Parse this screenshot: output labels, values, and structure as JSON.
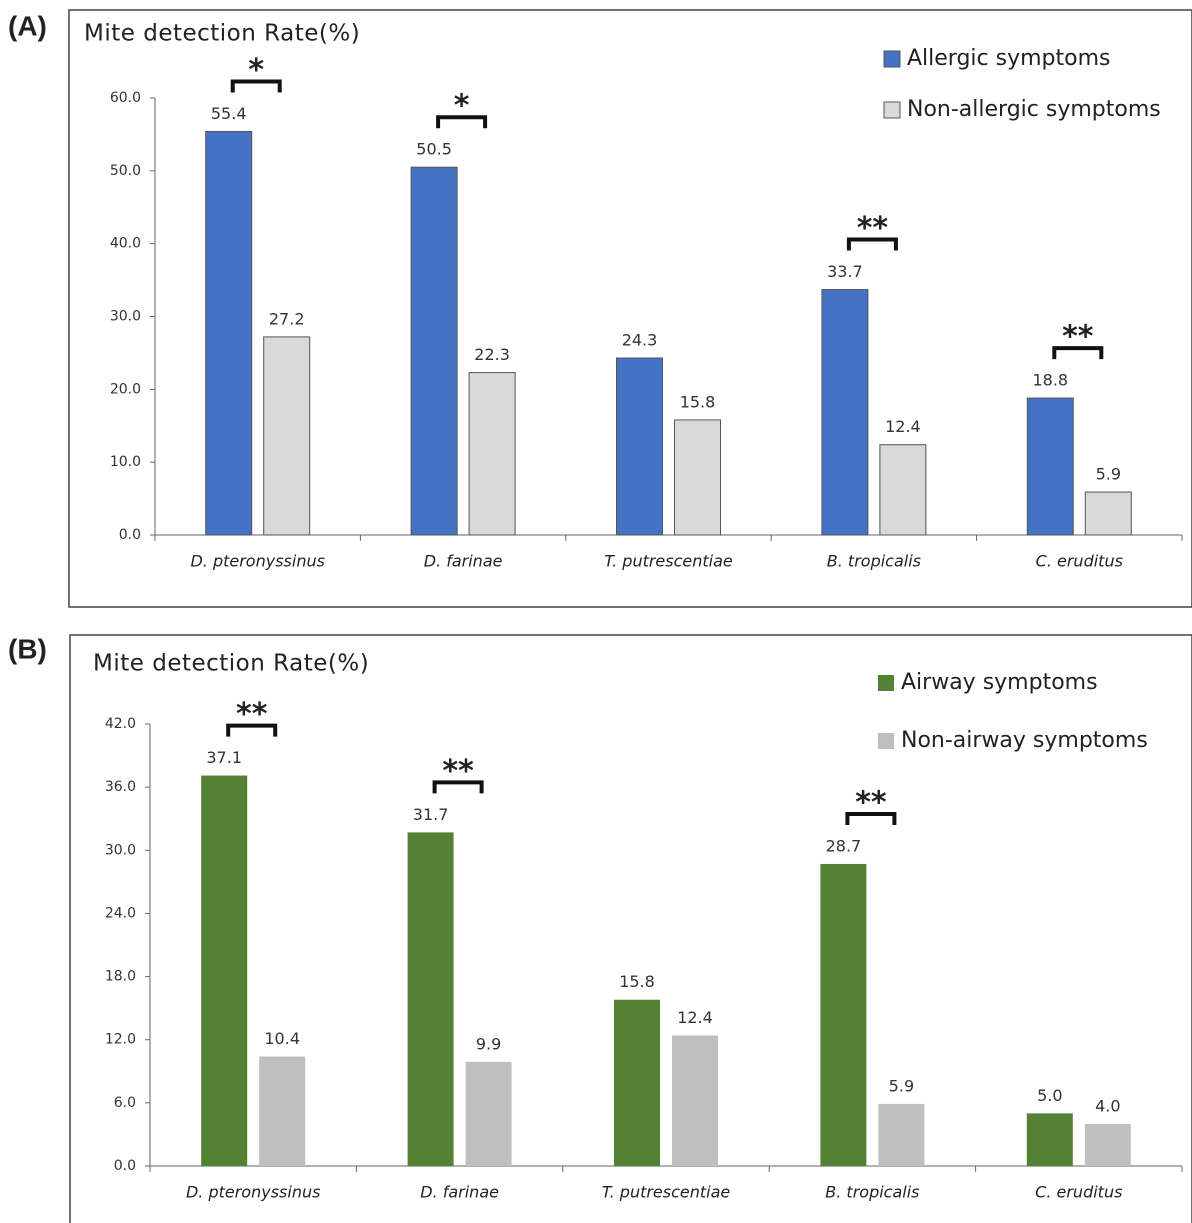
{
  "chart_data": [
    {
      "type": "bar",
      "panel_label": "(A)",
      "title": "Mite  detection Rate(%)",
      "categories": [
        "D. pteronyssinus",
        "D.  farinae",
        "T. putrescentiae",
        "B. tropicalis",
        "C. eruditus"
      ],
      "series": [
        {
          "name": "Allergic symptoms",
          "color": "#4472c4",
          "values": [
            55.4,
            50.5,
            24.3,
            33.7,
            18.8
          ]
        },
        {
          "name": "Non-allergic symptoms",
          "color": "#d9d9d9",
          "values": [
            27.2,
            22.3,
            15.8,
            12.4,
            5.9
          ]
        }
      ],
      "significance": [
        "*",
        "*",
        null,
        "**",
        "**"
      ],
      "ylim": [
        0,
        60
      ],
      "yticks": [
        {
          "value": 0,
          "label": "0.0"
        },
        {
          "value": 10,
          "label": "10.0"
        },
        {
          "value": 20,
          "label": "20.0"
        },
        {
          "value": 30,
          "label": "30.0"
        },
        {
          "value": 40,
          "label": "40.0"
        },
        {
          "value": 50,
          "label": "50.0"
        },
        {
          "value": 60,
          "label": "60.0"
        }
      ],
      "grid": false,
      "legend": "upper right"
    },
    {
      "type": "bar",
      "panel_label": "(B)",
      "title": "Mite  detection Rate(%)",
      "categories": [
        "D. pteronyssinus",
        "D.  farinae",
        "T. putrescentiae",
        "B. tropicalis",
        "C. eruditus"
      ],
      "series": [
        {
          "name": "Airway symptoms",
          "color": "#548235",
          "values": [
            37.1,
            31.7,
            15.8,
            28.7,
            5
          ],
          "value_labels": [
            "37.1",
            "31.7",
            "15.8",
            "28.7",
            "5.0"
          ]
        },
        {
          "name": "Non-airway symptoms",
          "color": "#bfbfbf",
          "values": [
            10.4,
            9.9,
            12.4,
            5.9,
            4
          ],
          "value_labels": [
            "10.4",
            "9.9",
            "12.4",
            "5.9",
            "4.0"
          ]
        }
      ],
      "significance": [
        "**",
        "**",
        null,
        "**",
        null
      ],
      "ylim": [
        0,
        42
      ],
      "yticks": [
        {
          "value": 0,
          "label": "0.0"
        },
        {
          "value": 6,
          "label": "6.0"
        },
        {
          "value": 12,
          "label": "12.0"
        },
        {
          "value": 18,
          "label": "18.0"
        },
        {
          "value": 24,
          "label": "24.0"
        },
        {
          "value": 30,
          "label": "30.0"
        },
        {
          "value": 36,
          "label": "36.0"
        },
        {
          "value": 42,
          "label": "42.0"
        }
      ],
      "grid": false,
      "legend": "upper right"
    }
  ]
}
